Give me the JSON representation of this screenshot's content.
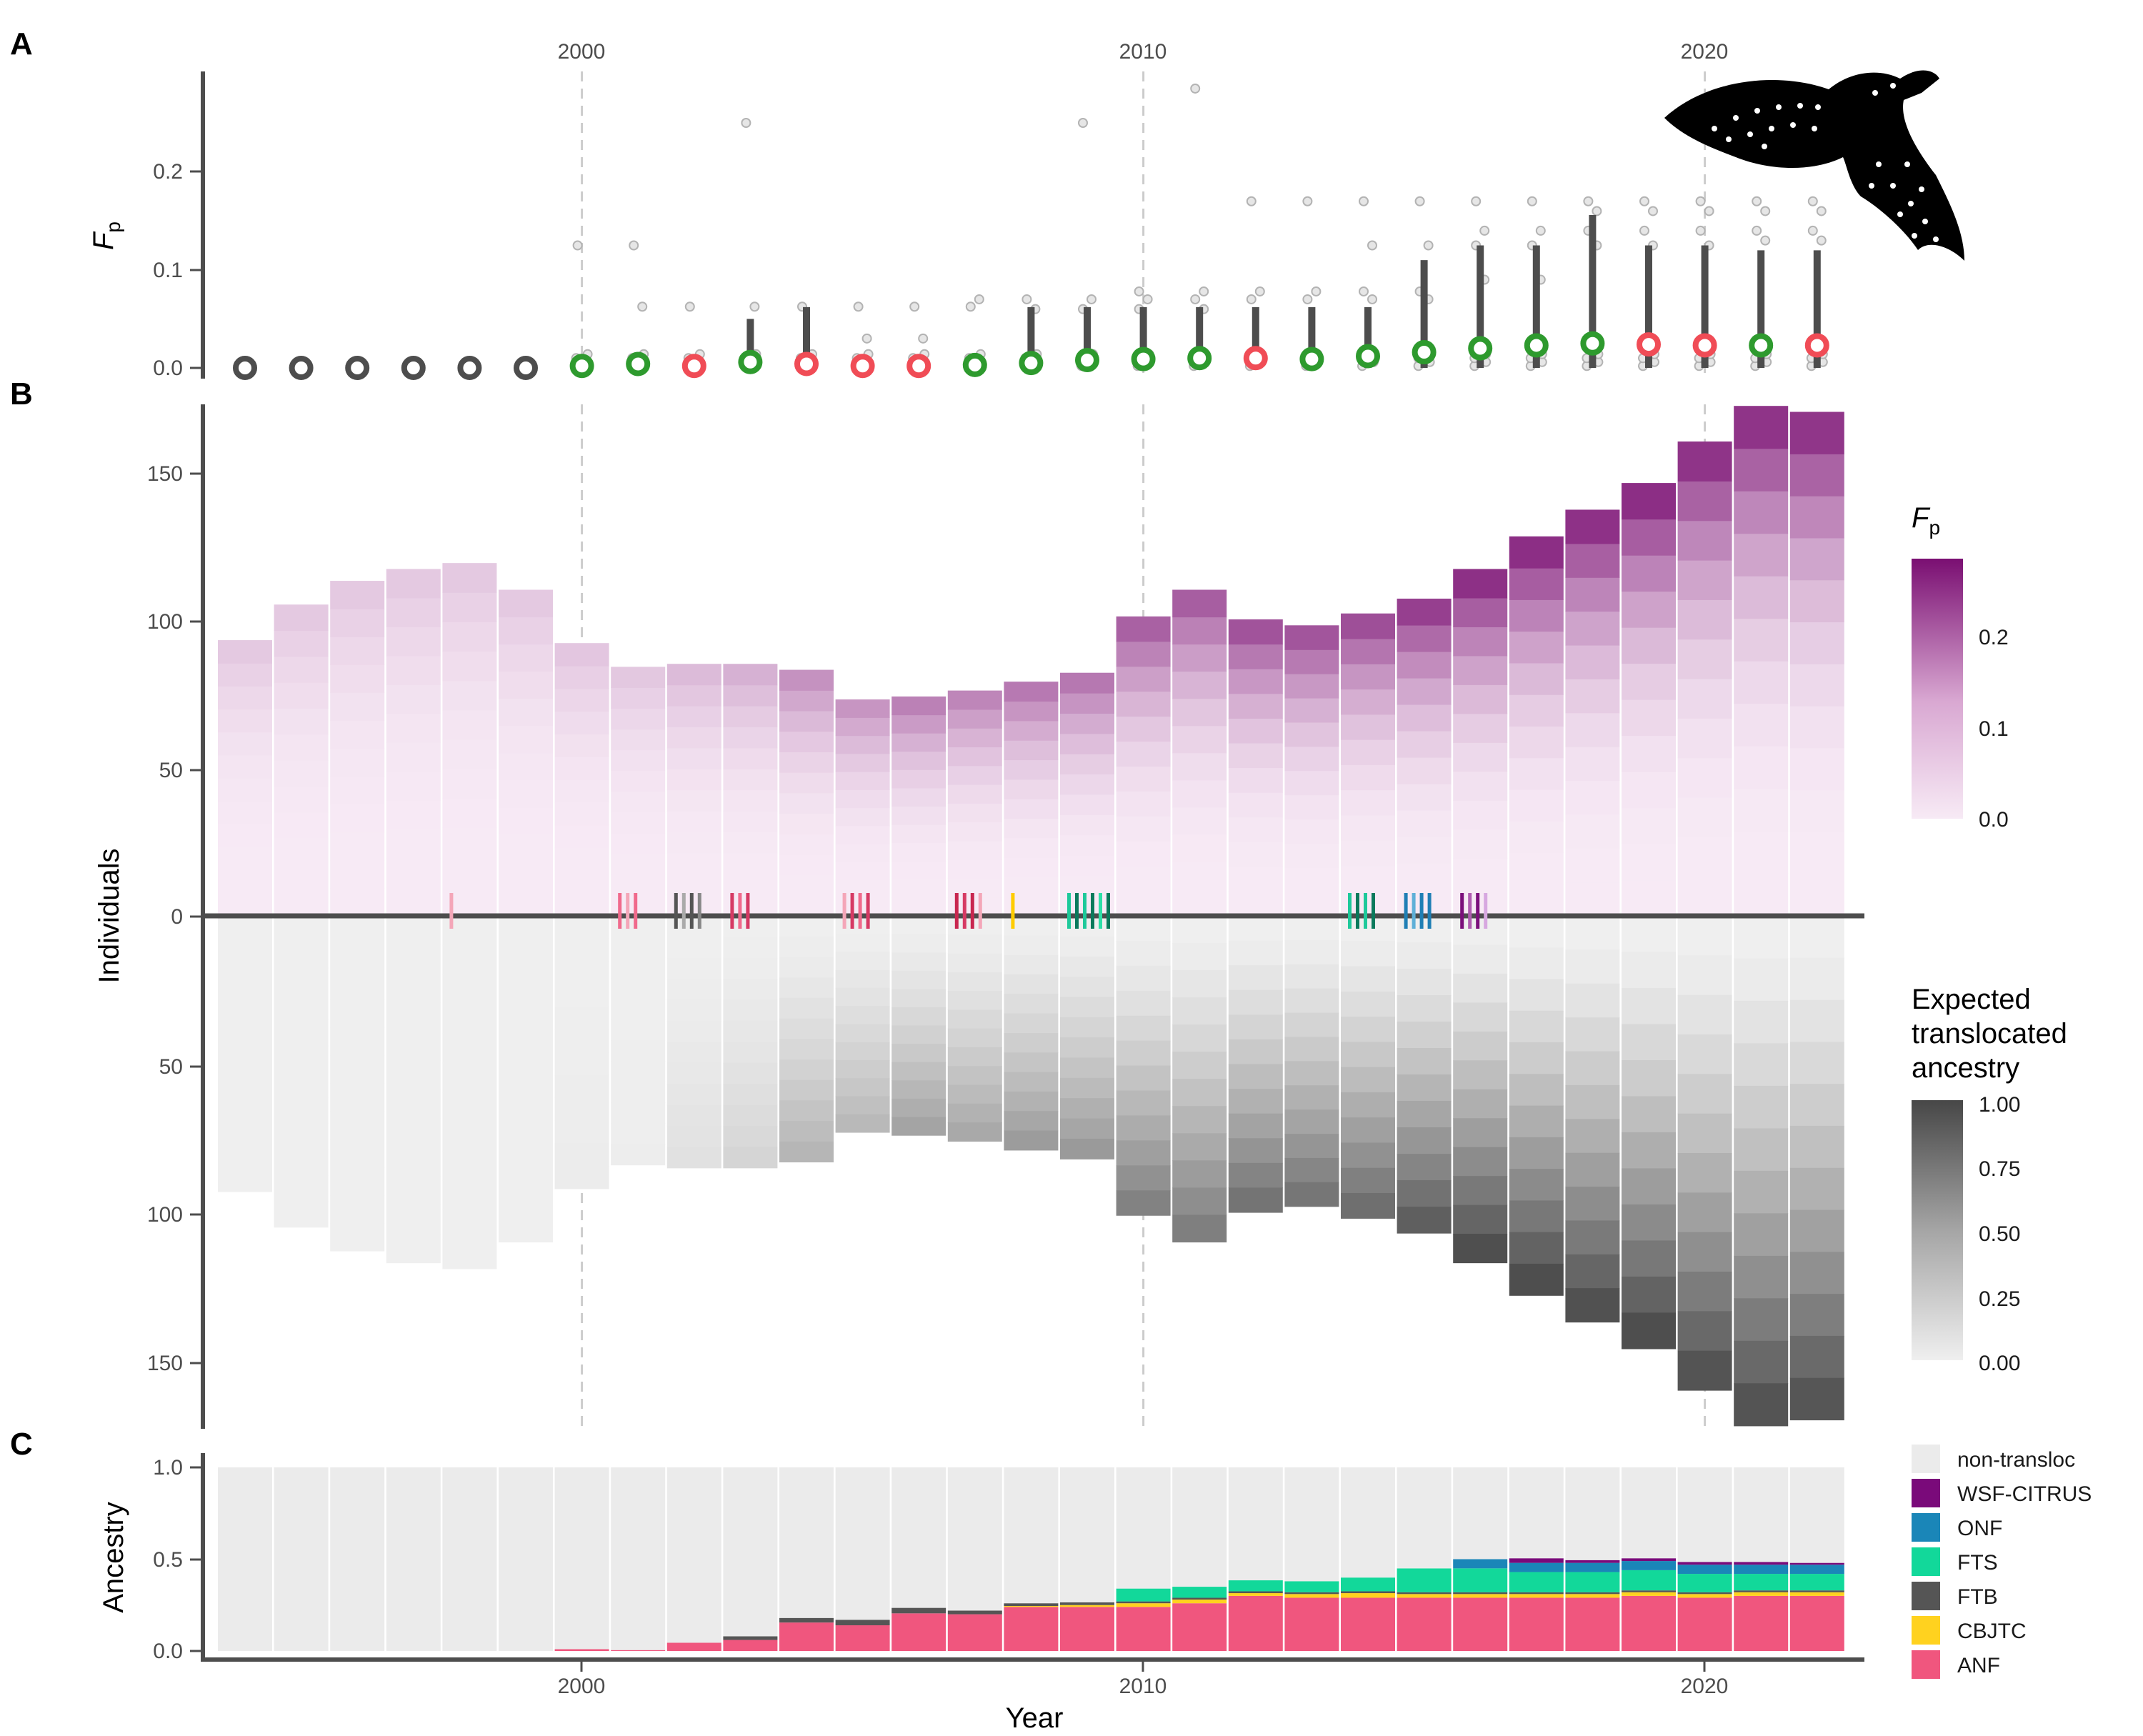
{
  "chart_data": [
    {
      "panel": "A",
      "type": "scatter",
      "ylabel": "F",
      "ylabel_subscript": "p",
      "x_ticks": [
        "2000",
        "2010",
        "2020"
      ],
      "y_ticks": [
        "0.0",
        "0.1",
        "0.2"
      ],
      "ylim": [
        0,
        0.3
      ],
      "years": [
        1994,
        1995,
        1996,
        1997,
        1998,
        1999,
        2000,
        2001,
        2002,
        2003,
        2004,
        2005,
        2006,
        2007,
        2008,
        2009,
        2010,
        2011,
        2012,
        2013,
        2014,
        2015,
        2016,
        2017,
        2018,
        2019,
        2020,
        2021,
        2022
      ],
      "mean_fp": [
        0,
        0,
        0,
        0,
        0,
        0,
        0.002,
        0.004,
        0.002,
        0.006,
        0.004,
        0.002,
        0.002,
        0.003,
        0.005,
        0.008,
        0.009,
        0.01,
        0.01,
        0.009,
        0.012,
        0.016,
        0.02,
        0.023,
        0.025,
        0.024,
        0.023,
        0.023,
        0.023
      ],
      "whisker_top": [
        0,
        0,
        0,
        0,
        0,
        0,
        0,
        0,
        0,
        0.05,
        0.062,
        0,
        0,
        0,
        0.062,
        0.062,
        0.062,
        0.062,
        0.062,
        0.062,
        0.062,
        0.11,
        0.125,
        0.125,
        0.156,
        0.125,
        0.125,
        0.12,
        0.12
      ],
      "marker_color": [
        "#4d4d4d",
        "#4d4d4d",
        "#4d4d4d",
        "#4d4d4d",
        "#4d4d4d",
        "#4d4d4d",
        "#2e9a2e",
        "#2e9a2e",
        "#f04c56",
        "#2e9a2e",
        "#f04c56",
        "#f04c56",
        "#f04c56",
        "#2e9a2e",
        "#2e9a2e",
        "#2e9a2e",
        "#2e9a2e",
        "#2e9a2e",
        "#f04c56",
        "#2e9a2e",
        "#2e9a2e",
        "#2e9a2e",
        "#2e9a2e",
        "#2e9a2e",
        "#2e9a2e",
        "#f04c56",
        "#f04c56",
        "#2e9a2e",
        "#f04c56"
      ],
      "outliers": [
        {
          "year": 2000,
          "values": [
            0.125
          ]
        },
        {
          "year": 2001,
          "values": [
            0.125,
            0.0625
          ]
        },
        {
          "year": 2002,
          "values": [
            0.0625
          ]
        },
        {
          "year": 2003,
          "values": [
            0.25,
            0.0625
          ]
        },
        {
          "year": 2004,
          "values": [
            0.0625
          ]
        },
        {
          "year": 2005,
          "values": [
            0.0625,
            0.03
          ]
        },
        {
          "year": 2006,
          "values": [
            0.0625,
            0.03
          ]
        },
        {
          "year": 2007,
          "values": [
            0.0625,
            0.07
          ]
        },
        {
          "year": 2008,
          "values": [
            0.07,
            0.06
          ]
        },
        {
          "year": 2009,
          "values": [
            0.25,
            0.07,
            0.06
          ]
        },
        {
          "year": 2010,
          "values": [
            0.078,
            0.07,
            0.06
          ]
        },
        {
          "year": 2011,
          "values": [
            0.285,
            0.078,
            0.07,
            0.06
          ]
        },
        {
          "year": 2012,
          "values": [
            0.17,
            0.078,
            0.07
          ]
        },
        {
          "year": 2013,
          "values": [
            0.17,
            0.078,
            0.07
          ]
        },
        {
          "year": 2014,
          "values": [
            0.17,
            0.125,
            0.078,
            0.07
          ]
        },
        {
          "year": 2015,
          "values": [
            0.17,
            0.125,
            0.078,
            0.07
          ]
        },
        {
          "year": 2016,
          "values": [
            0.17,
            0.14,
            0.125,
            0.09
          ]
        },
        {
          "year": 2017,
          "values": [
            0.17,
            0.14,
            0.125,
            0.09
          ]
        },
        {
          "year": 2018,
          "values": [
            0.17,
            0.16,
            0.14,
            0.125
          ]
        },
        {
          "year": 2019,
          "values": [
            0.17,
            0.16,
            0.14,
            0.125
          ]
        },
        {
          "year": 2020,
          "values": [
            0.17,
            0.16,
            0.14,
            0.125
          ]
        },
        {
          "year": 2021,
          "values": [
            0.17,
            0.16,
            0.14,
            0.13
          ]
        },
        {
          "year": 2022,
          "values": [
            0.17,
            0.16,
            0.14,
            0.13
          ]
        }
      ]
    },
    {
      "panel": "B",
      "type": "bar",
      "ylabel": "Individuals",
      "y_ticks_top": [
        "150",
        "100",
        "50",
        "0"
      ],
      "y_ticks_bottom": [
        "50",
        "100",
        "150"
      ],
      "years": [
        1994,
        1995,
        1996,
        1997,
        1998,
        1999,
        2000,
        2001,
        2002,
        2003,
        2004,
        2005,
        2006,
        2007,
        2008,
        2009,
        2010,
        2011,
        2012,
        2013,
        2014,
        2015,
        2016,
        2017,
        2018,
        2019,
        2020,
        2021,
        2022
      ],
      "individuals": [
        93,
        105,
        113,
        117,
        119,
        110,
        92,
        84,
        85,
        85,
        83,
        73,
        74,
        76,
        79,
        82,
        101,
        110,
        100,
        98,
        102,
        107,
        117,
        128,
        137,
        146,
        160,
        172,
        170
      ],
      "translocation_ticks": [
        {
          "year": 1998,
          "colors": [
            "#f4a6b8"
          ]
        },
        {
          "year": 2001,
          "colors": [
            "#f06a8c",
            "#f4a6b8",
            "#f06a8c"
          ]
        },
        {
          "year": 2002,
          "colors": [
            "#555555",
            "#aaaaaa",
            "#555555",
            "#888888"
          ]
        },
        {
          "year": 2003,
          "colors": [
            "#d63a64",
            "#f06a8c",
            "#d63a64"
          ]
        },
        {
          "year": 2005,
          "colors": [
            "#f4a6b8",
            "#d63a64",
            "#f06a8c",
            "#d63a64"
          ]
        },
        {
          "year": 2007,
          "colors": [
            "#c8264f",
            "#d63a64",
            "#c8264f",
            "#f4a6b8"
          ]
        },
        {
          "year": 2008,
          "colors": [
            "#ffcc00"
          ]
        },
        {
          "year": 2009,
          "colors": [
            "#1ec99a",
            "#0a7a5c",
            "#1ec99a",
            "#0a7a5c",
            "#2ee0a8",
            "#0a7a5c"
          ]
        },
        {
          "year": 2014,
          "colors": [
            "#1ec99a",
            "#0a7a5c",
            "#1ec99a",
            "#0a7a5c"
          ]
        },
        {
          "year": 2015,
          "colors": [
            "#1f7fb5",
            "#5fb0d8",
            "#1f7fb5",
            "#1f7fb5"
          ]
        },
        {
          "year": 2016,
          "colors": [
            "#7b0f7b",
            "#b05cb0",
            "#7b0f7b",
            "#d7a8e0"
          ]
        }
      ],
      "fp_legend": {
        "title": "F",
        "title_subscript": "p",
        "ticks": [
          "0.2",
          "0.1",
          "0.0"
        ],
        "color_low": "#f7eaf5",
        "color_high": "#7a0f72"
      },
      "ancestry_legend": {
        "title": [
          "Expected",
          "translocated",
          "ancestry"
        ],
        "ticks": [
          "1.00",
          "0.75",
          "0.50",
          "0.25",
          "0.00"
        ],
        "color_low": "#efefef",
        "color_high": "#474747"
      }
    },
    {
      "panel": "C",
      "type": "bar",
      "stacked": true,
      "ylabel": "Ancestry",
      "xlabel": "Year",
      "y_ticks": [
        "0.0",
        "0.5",
        "1.0"
      ],
      "x_ticks": [
        "2000",
        "2010",
        "2020"
      ],
      "years": [
        1994,
        1995,
        1996,
        1997,
        1998,
        1999,
        2000,
        2001,
        2002,
        2003,
        2004,
        2005,
        2006,
        2007,
        2008,
        2009,
        2010,
        2011,
        2012,
        2013,
        2014,
        2015,
        2016,
        2017,
        2018,
        2019,
        2020,
        2021,
        2022
      ],
      "series": [
        {
          "name": "ANF",
          "color": "#f0567e",
          "values": [
            0,
            0,
            0,
            0,
            0,
            0,
            0.01,
            0.005,
            0.045,
            0.06,
            0.155,
            0.14,
            0.205,
            0.2,
            0.24,
            0.24,
            0.24,
            0.26,
            0.3,
            0.29,
            0.29,
            0.29,
            0.29,
            0.29,
            0.29,
            0.3,
            0.29,
            0.3,
            0.3
          ]
        },
        {
          "name": "CBJTC",
          "color": "#ffd21f",
          "values": [
            0,
            0,
            0,
            0,
            0,
            0,
            0,
            0,
            0,
            0,
            0,
            0,
            0,
            0,
            0.005,
            0.01,
            0.02,
            0.02,
            0.015,
            0.02,
            0.025,
            0.02,
            0.02,
            0.02,
            0.02,
            0.02,
            0.02,
            0.02,
            0.02
          ]
        },
        {
          "name": "FTB",
          "color": "#555555",
          "values": [
            0,
            0,
            0,
            0,
            0,
            0,
            0,
            0,
            0,
            0.02,
            0.025,
            0.03,
            0.03,
            0.02,
            0.015,
            0.015,
            0.01,
            0.01,
            0.01,
            0.01,
            0.01,
            0.01,
            0.01,
            0.01,
            0.01,
            0.01,
            0.01,
            0.01,
            0.01
          ]
        },
        {
          "name": "FTS",
          "color": "#12d89a",
          "values": [
            0,
            0,
            0,
            0,
            0,
            0,
            0,
            0,
            0,
            0,
            0,
            0,
            0,
            0,
            0,
            0,
            0.07,
            0.06,
            0.06,
            0.06,
            0.075,
            0.13,
            0.13,
            0.11,
            0.11,
            0.11,
            0.1,
            0.09,
            0.09
          ]
        },
        {
          "name": "ONF",
          "color": "#1a86b8",
          "values": [
            0,
            0,
            0,
            0,
            0,
            0,
            0,
            0,
            0,
            0,
            0,
            0,
            0,
            0,
            0,
            0,
            0,
            0,
            0,
            0,
            0,
            0,
            0.05,
            0.05,
            0.05,
            0.05,
            0.05,
            0.05,
            0.05
          ]
        },
        {
          "name": "WSF-CITRUS",
          "color": "#7a0a7a",
          "values": [
            0,
            0,
            0,
            0,
            0,
            0,
            0,
            0,
            0,
            0,
            0,
            0,
            0,
            0,
            0,
            0,
            0,
            0,
            0,
            0,
            0,
            0,
            0,
            0.025,
            0.015,
            0.015,
            0.015,
            0.015,
            0.01
          ]
        },
        {
          "name": "non-transloc",
          "color": "#ebebeb",
          "values": [
            1,
            1,
            1,
            1,
            1,
            1,
            0.99,
            0.995,
            0.955,
            0.92,
            0.82,
            0.83,
            0.765,
            0.78,
            0.74,
            0.735,
            0.66,
            0.65,
            0.615,
            0.62,
            0.6,
            0.55,
            0.5,
            0.495,
            0.505,
            0.495,
            0.515,
            0.515,
            0.52
          ]
        }
      ],
      "legend_order": [
        "non-transloc",
        "WSF-CITRUS",
        "ONF",
        "FTS",
        "FTB",
        "CBJTC",
        "ANF"
      ]
    }
  ],
  "panel_labels": [
    "A",
    "B",
    "C"
  ]
}
